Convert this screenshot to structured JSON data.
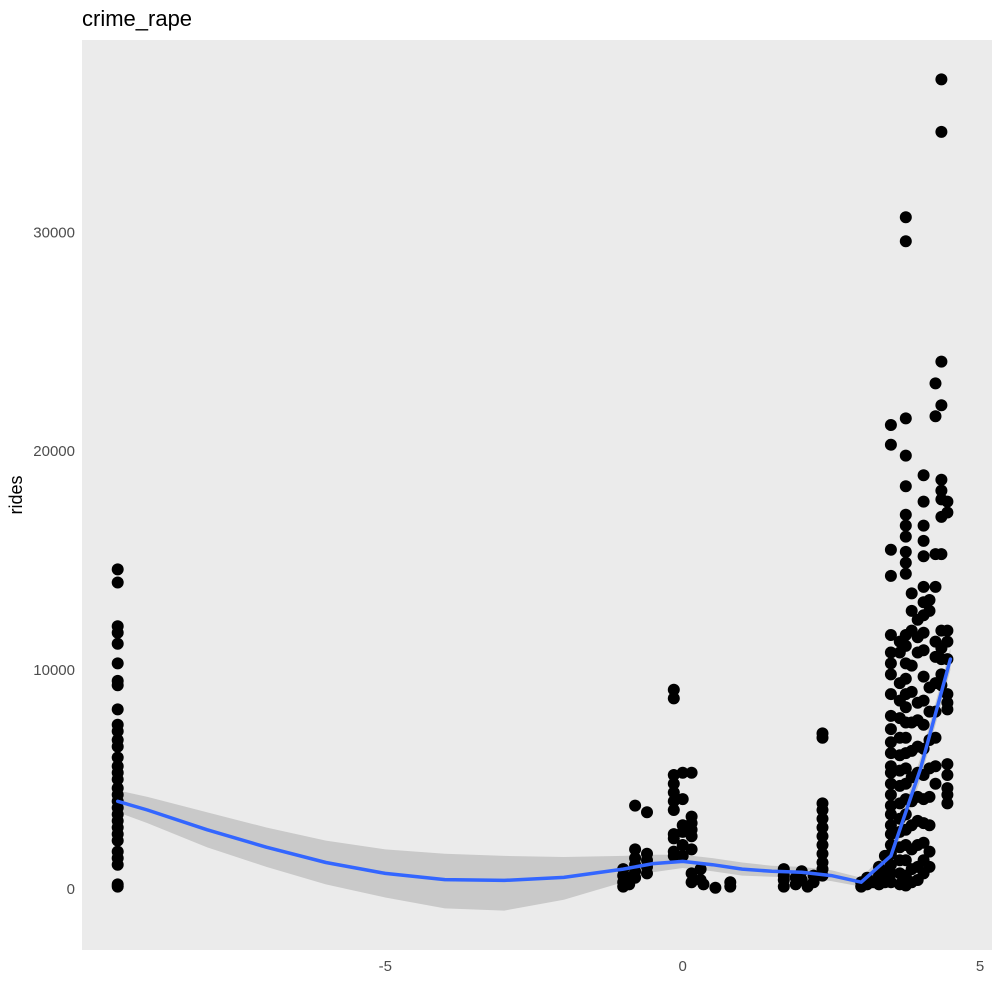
{
  "chart_data": {
    "type": "scatter",
    "title": "crime_rape",
    "xlabel": "",
    "ylabel": "rides",
    "xlim": [
      -10.1,
      5.2
    ],
    "ylim": [
      -2800,
      38800
    ],
    "x_ticks": [
      -5,
      0,
      5
    ],
    "x_tick_labels": [
      "-5",
      "0",
      "5"
    ],
    "y_ticks": [
      0,
      10000,
      20000,
      30000
    ],
    "y_tick_labels": [
      "0",
      "10000",
      "20000",
      "30000"
    ],
    "grid": false,
    "legend": "none",
    "colors": {
      "panel_background": "#ebebeb",
      "points": "#000000",
      "smooth_line": "#3366ff",
      "confidence_band": "#bdbdbd"
    },
    "smooth_line": {
      "x": [
        -9.5,
        -9.0,
        -8.0,
        -7.0,
        -6.0,
        -5.0,
        -4.0,
        -3.0,
        -2.0,
        -1.0,
        -0.5,
        0.0,
        0.5,
        1.0,
        1.5,
        2.0,
        2.5,
        3.0,
        3.5,
        4.0,
        4.5
      ],
      "y": [
        4000,
        3600,
        2700,
        1900,
        1200,
        700,
        420,
        380,
        520,
        900,
        1150,
        1250,
        1100,
        900,
        800,
        750,
        600,
        300,
        1500,
        5500,
        10500
      ]
    },
    "confidence_band": {
      "x": [
        -9.5,
        -9.0,
        -8.0,
        -7.0,
        -6.0,
        -5.0,
        -4.0,
        -3.0,
        -2.0,
        -1.0,
        -0.5,
        0.0,
        0.5,
        1.0,
        1.5,
        2.0,
        2.5,
        3.0,
        3.5,
        4.0,
        4.5
      ],
      "upper": [
        4500,
        4200,
        3500,
        2800,
        2200,
        1800,
        1600,
        1500,
        1450,
        1500,
        1550,
        1550,
        1400,
        1200,
        1050,
        1000,
        850,
        500,
        1900,
        6000,
        11000
      ],
      "lower": [
        3500,
        3000,
        1900,
        1000,
        200,
        -400,
        -900,
        -1000,
        -500,
        300,
        750,
        950,
        800,
        600,
        550,
        500,
        350,
        100,
        1100,
        5000,
        10000
      ]
    },
    "points": [
      {
        "x": -9.5,
        "y": 14600
      },
      {
        "x": -9.5,
        "y": 14000
      },
      {
        "x": -9.5,
        "y": 12000
      },
      {
        "x": -9.5,
        "y": 11700
      },
      {
        "x": -9.5,
        "y": 11200
      },
      {
        "x": -9.5,
        "y": 10300
      },
      {
        "x": -9.5,
        "y": 9500
      },
      {
        "x": -9.5,
        "y": 9300
      },
      {
        "x": -9.5,
        "y": 8200
      },
      {
        "x": -9.5,
        "y": 7500
      },
      {
        "x": -9.5,
        "y": 7200
      },
      {
        "x": -9.5,
        "y": 6800
      },
      {
        "x": -9.5,
        "y": 6500
      },
      {
        "x": -9.5,
        "y": 6000
      },
      {
        "x": -9.5,
        "y": 5600
      },
      {
        "x": -9.5,
        "y": 5300
      },
      {
        "x": -9.5,
        "y": 5000
      },
      {
        "x": -9.5,
        "y": 4600
      },
      {
        "x": -9.5,
        "y": 4300
      },
      {
        "x": -9.5,
        "y": 4000
      },
      {
        "x": -9.5,
        "y": 3700
      },
      {
        "x": -9.5,
        "y": 3400
      },
      {
        "x": -9.5,
        "y": 3100
      },
      {
        "x": -9.5,
        "y": 2800
      },
      {
        "x": -9.5,
        "y": 2500
      },
      {
        "x": -9.5,
        "y": 2200
      },
      {
        "x": -9.5,
        "y": 1700
      },
      {
        "x": -9.5,
        "y": 1400
      },
      {
        "x": -9.5,
        "y": 1100
      },
      {
        "x": -9.5,
        "y": 200
      },
      {
        "x": -9.5,
        "y": 100
      },
      {
        "x": -1.0,
        "y": 100
      },
      {
        "x": -1.0,
        "y": 300
      },
      {
        "x": -1.0,
        "y": 600
      },
      {
        "x": -1.0,
        "y": 900
      },
      {
        "x": -0.9,
        "y": 200
      },
      {
        "x": -0.9,
        "y": 500
      },
      {
        "x": -0.8,
        "y": 3800
      },
      {
        "x": -0.8,
        "y": 1800
      },
      {
        "x": -0.8,
        "y": 1400
      },
      {
        "x": -0.8,
        "y": 1100
      },
      {
        "x": -0.8,
        "y": 800
      },
      {
        "x": -0.8,
        "y": 500
      },
      {
        "x": -0.6,
        "y": 3500
      },
      {
        "x": -0.6,
        "y": 1600
      },
      {
        "x": -0.6,
        "y": 1300
      },
      {
        "x": -0.6,
        "y": 1000
      },
      {
        "x": -0.6,
        "y": 700
      },
      {
        "x": -0.15,
        "y": 9100
      },
      {
        "x": -0.15,
        "y": 8700
      },
      {
        "x": -0.15,
        "y": 5200
      },
      {
        "x": -0.15,
        "y": 4800
      },
      {
        "x": -0.15,
        "y": 4400
      },
      {
        "x": -0.15,
        "y": 4000
      },
      {
        "x": -0.15,
        "y": 3600
      },
      {
        "x": -0.15,
        "y": 2500
      },
      {
        "x": -0.15,
        "y": 2300
      },
      {
        "x": -0.15,
        "y": 1700
      },
      {
        "x": -0.15,
        "y": 1500
      },
      {
        "x": 0.0,
        "y": 5300
      },
      {
        "x": 0.0,
        "y": 4100
      },
      {
        "x": 0.0,
        "y": 2900
      },
      {
        "x": 0.0,
        "y": 2600
      },
      {
        "x": 0.0,
        "y": 2000
      },
      {
        "x": 0.0,
        "y": 1500
      },
      {
        "x": 0.15,
        "y": 5300
      },
      {
        "x": 0.15,
        "y": 3300
      },
      {
        "x": 0.15,
        "y": 3000
      },
      {
        "x": 0.15,
        "y": 2700
      },
      {
        "x": 0.15,
        "y": 2400
      },
      {
        "x": 0.15,
        "y": 1800
      },
      {
        "x": 0.15,
        "y": 700
      },
      {
        "x": 0.15,
        "y": 300
      },
      {
        "x": 0.3,
        "y": 900
      },
      {
        "x": 0.3,
        "y": 400
      },
      {
        "x": 0.35,
        "y": 200
      },
      {
        "x": 0.55,
        "y": 50
      },
      {
        "x": 0.8,
        "y": 300
      },
      {
        "x": 0.8,
        "y": 100
      },
      {
        "x": 1.7,
        "y": 900
      },
      {
        "x": 1.7,
        "y": 600
      },
      {
        "x": 1.7,
        "y": 400
      },
      {
        "x": 1.7,
        "y": 100
      },
      {
        "x": 1.9,
        "y": 200
      },
      {
        "x": 1.9,
        "y": 500
      },
      {
        "x": 2.0,
        "y": 800
      },
      {
        "x": 2.0,
        "y": 400
      },
      {
        "x": 2.1,
        "y": 100
      },
      {
        "x": 2.2,
        "y": 600
      },
      {
        "x": 2.2,
        "y": 300
      },
      {
        "x": 2.35,
        "y": 7100
      },
      {
        "x": 2.35,
        "y": 6900
      },
      {
        "x": 2.35,
        "y": 3900
      },
      {
        "x": 2.35,
        "y": 3600
      },
      {
        "x": 2.35,
        "y": 3200
      },
      {
        "x": 2.35,
        "y": 2800
      },
      {
        "x": 2.35,
        "y": 2400
      },
      {
        "x": 2.35,
        "y": 2000
      },
      {
        "x": 2.35,
        "y": 1600
      },
      {
        "x": 2.35,
        "y": 1200
      },
      {
        "x": 2.35,
        "y": 900
      },
      {
        "x": 2.35,
        "y": 600
      },
      {
        "x": 3.0,
        "y": 300
      },
      {
        "x": 3.0,
        "y": 100
      },
      {
        "x": 3.1,
        "y": 500
      },
      {
        "x": 3.1,
        "y": 200
      },
      {
        "x": 3.2,
        "y": 300
      },
      {
        "x": 3.3,
        "y": 1000
      },
      {
        "x": 3.3,
        "y": 600
      },
      {
        "x": 3.3,
        "y": 200
      },
      {
        "x": 3.4,
        "y": 1500
      },
      {
        "x": 3.4,
        "y": 800
      },
      {
        "x": 3.4,
        "y": 300
      },
      {
        "x": 3.5,
        "y": 21200
      },
      {
        "x": 3.5,
        "y": 20300
      },
      {
        "x": 3.5,
        "y": 15500
      },
      {
        "x": 3.5,
        "y": 14300
      },
      {
        "x": 3.5,
        "y": 11600
      },
      {
        "x": 3.5,
        "y": 10800
      },
      {
        "x": 3.5,
        "y": 10300
      },
      {
        "x": 3.5,
        "y": 9800
      },
      {
        "x": 3.5,
        "y": 8900
      },
      {
        "x": 3.5,
        "y": 7900
      },
      {
        "x": 3.5,
        "y": 7300
      },
      {
        "x": 3.5,
        "y": 6700
      },
      {
        "x": 3.5,
        "y": 6200
      },
      {
        "x": 3.5,
        "y": 5600
      },
      {
        "x": 3.5,
        "y": 5300
      },
      {
        "x": 3.5,
        "y": 4800
      },
      {
        "x": 3.5,
        "y": 4300
      },
      {
        "x": 3.5,
        "y": 3800
      },
      {
        "x": 3.5,
        "y": 3400
      },
      {
        "x": 3.5,
        "y": 2900
      },
      {
        "x": 3.5,
        "y": 2500
      },
      {
        "x": 3.5,
        "y": 2000
      },
      {
        "x": 3.5,
        "y": 1600
      },
      {
        "x": 3.5,
        "y": 1100
      },
      {
        "x": 3.5,
        "y": 700
      },
      {
        "x": 3.5,
        "y": 300
      },
      {
        "x": 3.65,
        "y": 11300
      },
      {
        "x": 3.65,
        "y": 10800
      },
      {
        "x": 3.65,
        "y": 9400
      },
      {
        "x": 3.65,
        "y": 8600
      },
      {
        "x": 3.65,
        "y": 7800
      },
      {
        "x": 3.65,
        "y": 6900
      },
      {
        "x": 3.65,
        "y": 6100
      },
      {
        "x": 3.65,
        "y": 5400
      },
      {
        "x": 3.65,
        "y": 4700
      },
      {
        "x": 3.65,
        "y": 3900
      },
      {
        "x": 3.65,
        "y": 3200
      },
      {
        "x": 3.65,
        "y": 2600
      },
      {
        "x": 3.65,
        "y": 1900
      },
      {
        "x": 3.65,
        "y": 1300
      },
      {
        "x": 3.65,
        "y": 700
      },
      {
        "x": 3.65,
        "y": 200
      },
      {
        "x": 3.75,
        "y": 30700
      },
      {
        "x": 3.75,
        "y": 29600
      },
      {
        "x": 3.75,
        "y": 21500
      },
      {
        "x": 3.75,
        "y": 19800
      },
      {
        "x": 3.75,
        "y": 18400
      },
      {
        "x": 3.75,
        "y": 17100
      },
      {
        "x": 3.75,
        "y": 16600
      },
      {
        "x": 3.75,
        "y": 16100
      },
      {
        "x": 3.75,
        "y": 15400
      },
      {
        "x": 3.75,
        "y": 14900
      },
      {
        "x": 3.75,
        "y": 14400
      },
      {
        "x": 3.75,
        "y": 11600
      },
      {
        "x": 3.75,
        "y": 11100
      },
      {
        "x": 3.75,
        "y": 10300
      },
      {
        "x": 3.75,
        "y": 9600
      },
      {
        "x": 3.75,
        "y": 8900
      },
      {
        "x": 3.75,
        "y": 8300
      },
      {
        "x": 3.75,
        "y": 7600
      },
      {
        "x": 3.75,
        "y": 6900
      },
      {
        "x": 3.75,
        "y": 6200
      },
      {
        "x": 3.75,
        "y": 5500
      },
      {
        "x": 3.75,
        "y": 4800
      },
      {
        "x": 3.75,
        "y": 4100
      },
      {
        "x": 3.75,
        "y": 3400
      },
      {
        "x": 3.75,
        "y": 2700
      },
      {
        "x": 3.75,
        "y": 2000
      },
      {
        "x": 3.75,
        "y": 1300
      },
      {
        "x": 3.75,
        "y": 600
      },
      {
        "x": 3.75,
        "y": 150
      },
      {
        "x": 3.85,
        "y": 13500
      },
      {
        "x": 3.85,
        "y": 12700
      },
      {
        "x": 3.85,
        "y": 11800
      },
      {
        "x": 3.85,
        "y": 10200
      },
      {
        "x": 3.85,
        "y": 9000
      },
      {
        "x": 3.85,
        "y": 7600
      },
      {
        "x": 3.85,
        "y": 6300
      },
      {
        "x": 3.85,
        "y": 5100
      },
      {
        "x": 3.85,
        "y": 4000
      },
      {
        "x": 3.85,
        "y": 2900
      },
      {
        "x": 3.85,
        "y": 1800
      },
      {
        "x": 3.85,
        "y": 900
      },
      {
        "x": 3.85,
        "y": 300
      },
      {
        "x": 3.95,
        "y": 12300
      },
      {
        "x": 3.95,
        "y": 11500
      },
      {
        "x": 3.95,
        "y": 10800
      },
      {
        "x": 3.95,
        "y": 8500
      },
      {
        "x": 3.95,
        "y": 7700
      },
      {
        "x": 3.95,
        "y": 6500
      },
      {
        "x": 3.95,
        "y": 5300
      },
      {
        "x": 3.95,
        "y": 4200
      },
      {
        "x": 3.95,
        "y": 3100
      },
      {
        "x": 3.95,
        "y": 2000
      },
      {
        "x": 3.95,
        "y": 1000
      },
      {
        "x": 3.95,
        "y": 400
      },
      {
        "x": 4.05,
        "y": 18900
      },
      {
        "x": 4.05,
        "y": 17700
      },
      {
        "x": 4.05,
        "y": 16600
      },
      {
        "x": 4.05,
        "y": 15900
      },
      {
        "x": 4.05,
        "y": 15200
      },
      {
        "x": 4.05,
        "y": 13800
      },
      {
        "x": 4.05,
        "y": 13100
      },
      {
        "x": 4.05,
        "y": 12500
      },
      {
        "x": 4.05,
        "y": 11700
      },
      {
        "x": 4.05,
        "y": 10900
      },
      {
        "x": 4.05,
        "y": 9700
      },
      {
        "x": 4.05,
        "y": 8600
      },
      {
        "x": 4.05,
        "y": 7500
      },
      {
        "x": 4.05,
        "y": 6400
      },
      {
        "x": 4.05,
        "y": 5200
      },
      {
        "x": 4.05,
        "y": 4100
      },
      {
        "x": 4.05,
        "y": 3000
      },
      {
        "x": 4.05,
        "y": 2100
      },
      {
        "x": 4.05,
        "y": 1300
      },
      {
        "x": 4.05,
        "y": 700
      },
      {
        "x": 4.15,
        "y": 13200
      },
      {
        "x": 4.15,
        "y": 12700
      },
      {
        "x": 4.15,
        "y": 9200
      },
      {
        "x": 4.15,
        "y": 8100
      },
      {
        "x": 4.15,
        "y": 6800
      },
      {
        "x": 4.15,
        "y": 5500
      },
      {
        "x": 4.15,
        "y": 4200
      },
      {
        "x": 4.15,
        "y": 2900
      },
      {
        "x": 4.15,
        "y": 1700
      },
      {
        "x": 4.15,
        "y": 1000
      },
      {
        "x": 4.25,
        "y": 23100
      },
      {
        "x": 4.25,
        "y": 21600
      },
      {
        "x": 4.25,
        "y": 15300
      },
      {
        "x": 4.25,
        "y": 13800
      },
      {
        "x": 4.25,
        "y": 11300
      },
      {
        "x": 4.25,
        "y": 10600
      },
      {
        "x": 4.25,
        "y": 9400
      },
      {
        "x": 4.25,
        "y": 8100
      },
      {
        "x": 4.25,
        "y": 6900
      },
      {
        "x": 4.25,
        "y": 5600
      },
      {
        "x": 4.25,
        "y": 4800
      },
      {
        "x": 4.35,
        "y": 37000
      },
      {
        "x": 4.35,
        "y": 34600
      },
      {
        "x": 4.35,
        "y": 24100
      },
      {
        "x": 4.35,
        "y": 22100
      },
      {
        "x": 4.35,
        "y": 18700
      },
      {
        "x": 4.35,
        "y": 18200
      },
      {
        "x": 4.35,
        "y": 17800
      },
      {
        "x": 4.35,
        "y": 17000
      },
      {
        "x": 4.35,
        "y": 15300
      },
      {
        "x": 4.35,
        "y": 11800
      },
      {
        "x": 4.35,
        "y": 11000
      },
      {
        "x": 4.35,
        "y": 10500
      },
      {
        "x": 4.35,
        "y": 9800
      },
      {
        "x": 4.35,
        "y": 9300
      },
      {
        "x": 4.45,
        "y": 17700
      },
      {
        "x": 4.45,
        "y": 17200
      },
      {
        "x": 4.45,
        "y": 11800
      },
      {
        "x": 4.45,
        "y": 11300
      },
      {
        "x": 4.45,
        "y": 10500
      },
      {
        "x": 4.45,
        "y": 8900
      },
      {
        "x": 4.45,
        "y": 8500
      },
      {
        "x": 4.45,
        "y": 8200
      },
      {
        "x": 4.45,
        "y": 5700
      },
      {
        "x": 4.45,
        "y": 5200
      },
      {
        "x": 4.45,
        "y": 4600
      },
      {
        "x": 4.45,
        "y": 4300
      },
      {
        "x": 4.45,
        "y": 3900
      }
    ]
  }
}
